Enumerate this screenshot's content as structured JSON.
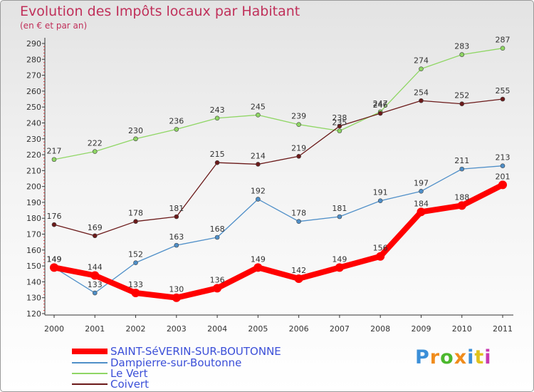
{
  "title": "Evolution des Impôts locaux par Habitant",
  "subtitle": "(en € et par an)",
  "chart_data": {
    "type": "line",
    "title": "Evolution des Impôts locaux par Habitant",
    "subtitle": "(en € et par an)",
    "xlabel": "",
    "ylabel": "",
    "x": [
      "2000",
      "2001",
      "2002",
      "2003",
      "2004",
      "2005",
      "2006",
      "2007",
      "2008",
      "2009",
      "2010",
      "2011"
    ],
    "ylim": [
      120,
      290
    ],
    "yticks": [
      120,
      130,
      140,
      150,
      160,
      170,
      180,
      190,
      200,
      210,
      220,
      230,
      240,
      250,
      260,
      270,
      280,
      290
    ],
    "grid": false,
    "legend_position": "bottom-left",
    "series": [
      {
        "name": "SAINT-SéVERIN-SUR-BOUTONNE",
        "color": "#ff0000",
        "values": [
          149,
          144,
          133,
          130,
          136,
          149,
          142,
          149,
          156,
          184,
          188,
          201
        ]
      },
      {
        "name": "Dampierre-sur-Boutonne",
        "color": "#4f8fc8",
        "values": [
          149,
          133,
          152,
          163,
          168,
          192,
          178,
          181,
          191,
          197,
          211,
          213
        ]
      },
      {
        "name": "Le Vert",
        "color": "#8fd664",
        "values": [
          217,
          222,
          230,
          236,
          243,
          245,
          239,
          235,
          247,
          274,
          283,
          287
        ]
      },
      {
        "name": "Coivert",
        "color": "#6b1a1a",
        "values": [
          176,
          169,
          178,
          181,
          215,
          214,
          219,
          238,
          246,
          254,
          252,
          255
        ]
      }
    ]
  },
  "logo": {
    "text": "Proxiti",
    "colors": [
      "#3b8fd8",
      "#f08c1c",
      "#4cb82e",
      "#f08c1c",
      "#3b8fd8",
      "#e0c21c",
      "#c83ab0"
    ]
  }
}
